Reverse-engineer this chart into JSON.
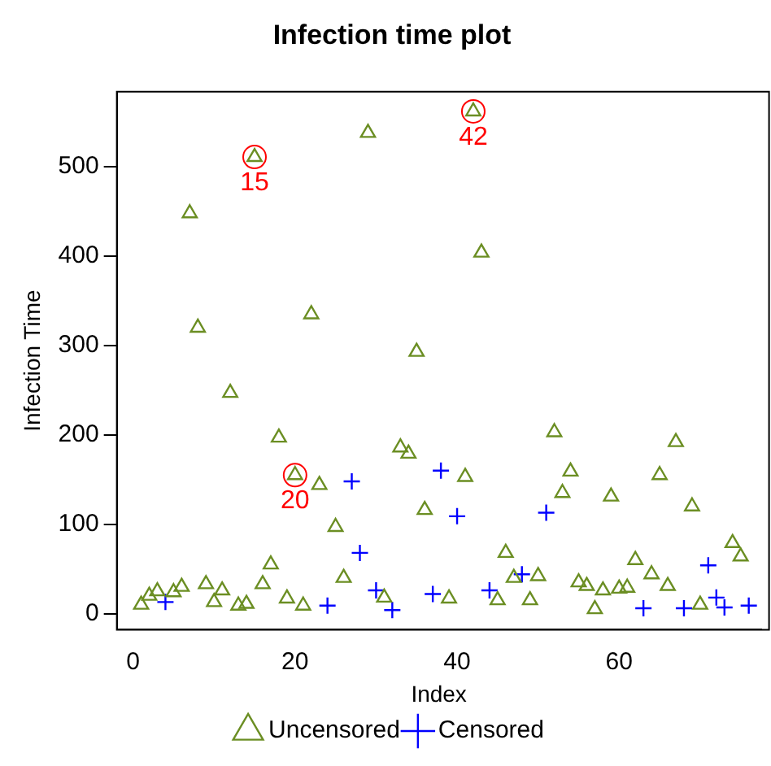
{
  "chart_data": {
    "type": "scatter",
    "title": "Infection time plot",
    "xlabel": "Index",
    "ylabel": "Infection Time",
    "xlim": [
      -2,
      77.5
    ],
    "xticks": [
      0,
      20,
      40,
      60
    ],
    "ylim": [
      -18,
      584
    ],
    "yticks": [
      0,
      100,
      200,
      300,
      400,
      500
    ],
    "grid": false,
    "legend": "bottom",
    "series": [
      {
        "name": "Uncensored",
        "color": "#6b8e23",
        "marker": "triangle",
        "x": [
          1,
          2,
          3,
          5,
          6,
          7,
          8,
          9,
          10,
          11,
          12,
          13,
          14,
          15,
          16,
          17,
          18,
          19,
          20,
          21,
          22,
          23,
          25,
          26,
          29,
          31,
          33,
          34,
          35,
          36,
          39,
          41,
          42,
          43,
          45,
          46,
          47,
          49,
          50,
          52,
          53,
          54,
          55,
          56,
          57,
          58,
          59,
          60,
          61,
          62,
          64,
          65,
          66,
          67,
          69,
          70,
          74,
          75
        ],
        "values": [
          10,
          20,
          25,
          24,
          30,
          448,
          320,
          33,
          13,
          26,
          247,
          9,
          11,
          511,
          33,
          55,
          197,
          17,
          155,
          9,
          335,
          144,
          97,
          40,
          538,
          18,
          186,
          179,
          293,
          116,
          17,
          153,
          562,
          404,
          15,
          68,
          40,
          15,
          42,
          203,
          135,
          159,
          35,
          31,
          5,
          26,
          131,
          28,
          29,
          60,
          44,
          155,
          31,
          192,
          120,
          10,
          79,
          64
        ]
      },
      {
        "name": "Censored",
        "color": "#0000ff",
        "marker": "cross",
        "x": [
          4,
          24,
          27,
          28,
          30,
          32,
          37,
          38,
          40,
          44,
          48,
          51,
          63,
          68,
          71,
          72,
          73,
          76
        ],
        "values": [
          13,
          9,
          148,
          68,
          26,
          4,
          22,
          160,
          109,
          26,
          44,
          113,
          6,
          6,
          54,
          18,
          7,
          9
        ]
      }
    ],
    "annotations": [
      {
        "text": "15",
        "x": 15,
        "y": 511
      },
      {
        "text": "20",
        "x": 20,
        "y": 155
      },
      {
        "text": "42",
        "x": 42,
        "y": 562
      }
    ]
  }
}
